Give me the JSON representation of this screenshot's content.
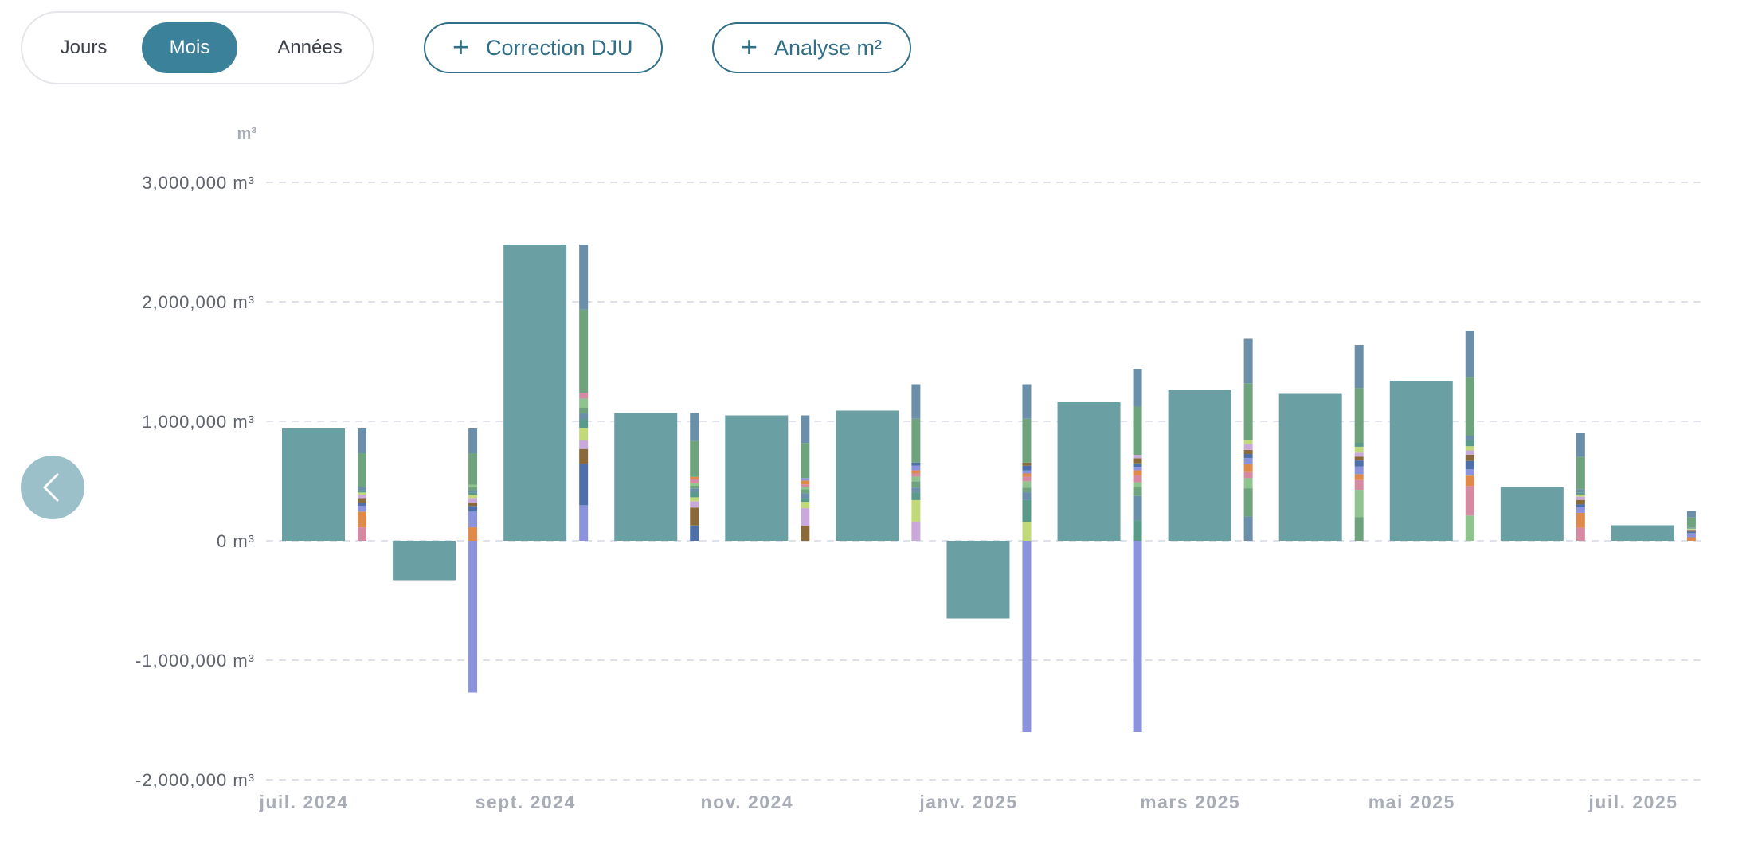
{
  "period_selector": {
    "options": [
      {
        "label": "Jours",
        "active": false
      },
      {
        "label": "Mois",
        "active": true
      },
      {
        "label": "Années",
        "active": false
      }
    ]
  },
  "actions": {
    "correction_label": "Correction DJU",
    "analyse_label": "Analyse m²"
  },
  "icons": {
    "prev": "chevron-left-icon",
    "plus": "plus-icon"
  },
  "colors": {
    "main_bar": "#6a9fa4",
    "accent": "#3b8199",
    "negative_detail": "#8a93db",
    "grid": "#dde1ea",
    "detail_palette": [
      "#6b8ea9",
      "#6fa37d",
      "#8fc48f",
      "#d58aa2",
      "#e08a4a",
      "#8a93db",
      "#4e6fa8",
      "#8a6a3a",
      "#c9a9d9",
      "#c2d97a",
      "#5a9a8a"
    ]
  },
  "chart_data": {
    "type": "bar",
    "unit_label": "m³",
    "ylim": [
      -2000000,
      3000000
    ],
    "yticks": [
      "3,000,000 m³",
      "2,000,000 m³",
      "1,000,000 m³",
      "0 m³",
      "-1,000,000 m³",
      "-2,000,000 m³"
    ],
    "grid": true,
    "x_tick_labels": [
      "juil. 2024",
      "sept. 2024",
      "nov. 2024",
      "janv. 2025",
      "mars 2025",
      "mai 2025",
      "juil. 2025"
    ],
    "categories": [
      "juil. 2024",
      "août 2024",
      "sept. 2024",
      "oct. 2024",
      "nov. 2024",
      "déc. 2024",
      "janv. 2025",
      "févr. 2025",
      "mars 2025",
      "avr. 2025",
      "mai 2025",
      "juin 2025",
      "juil. 2025"
    ],
    "series": [
      {
        "values": [
          940000,
          -330000,
          2480000,
          1070000,
          1050000,
          1090000,
          -650000,
          1160000,
          1260000,
          1230000,
          1340000,
          450000,
          130000
        ]
      },
      {
        "stacked": true,
        "positive_totals": [
          940000,
          940000,
          2480000,
          1070000,
          1050000,
          1310000,
          1310000,
          1440000,
          1690000,
          1640000,
          1760000,
          900000,
          250000
        ],
        "negative_totals": [
          0,
          -1270000,
          0,
          0,
          0,
          0,
          -1600000,
          -1600000,
          0,
          0,
          0,
          0,
          0
        ]
      }
    ]
  }
}
